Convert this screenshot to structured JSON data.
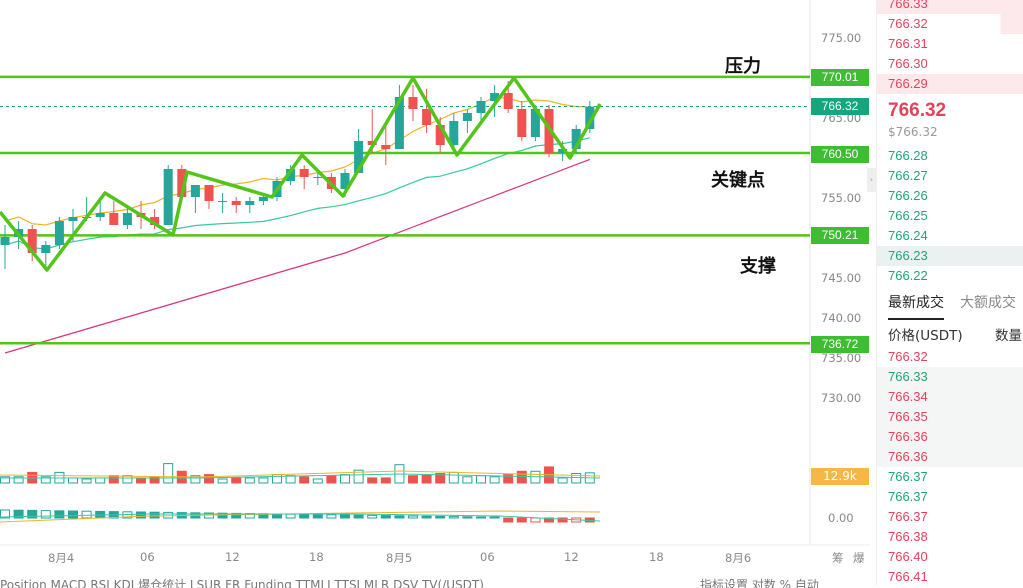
{
  "chart_data": {
    "type": "candlestick",
    "price_axis": [
      "775.00",
      "770.00",
      "765.00",
      "760.00",
      "755.00",
      "750.00",
      "745.00",
      "740.00",
      "735.00",
      "730.00"
    ],
    "volume_axis_zero": "0.00",
    "x_labels": [
      "8月4",
      "06",
      "12",
      "18",
      "8月5",
      "06",
      "12",
      "18",
      "8月6"
    ],
    "horizontal_levels": [
      {
        "value": "770.01",
        "annotation": "压力"
      },
      {
        "value": "760.50",
        "annotation": "关键点"
      },
      {
        "value": "750.21",
        "annotation": "支撑"
      },
      {
        "value": "736.72",
        "annotation": ""
      }
    ],
    "current_price_label": "766.32",
    "volume_label": "12.9k",
    "candles": [
      {
        "o": 749.0,
        "h": 751.5,
        "l": 746.0,
        "c": 750.0
      },
      {
        "o": 750.0,
        "h": 752.0,
        "l": 748.5,
        "c": 751.0
      },
      {
        "o": 751.0,
        "h": 751.5,
        "l": 747.0,
        "c": 748.0
      },
      {
        "o": 748.0,
        "h": 749.5,
        "l": 746.0,
        "c": 749.0
      },
      {
        "o": 749.0,
        "h": 752.5,
        "l": 748.5,
        "c": 752.0
      },
      {
        "o": 752.0,
        "h": 753.5,
        "l": 749.5,
        "c": 752.5
      },
      {
        "o": 752.5,
        "h": 755.0,
        "l": 752.0,
        "c": 752.5
      },
      {
        "o": 752.5,
        "h": 754.5,
        "l": 752.0,
        "c": 753.0
      },
      {
        "o": 753.0,
        "h": 754.5,
        "l": 751.5,
        "c": 751.5
      },
      {
        "o": 751.5,
        "h": 754.0,
        "l": 751.0,
        "c": 753.0
      },
      {
        "o": 753.0,
        "h": 754.5,
        "l": 751.0,
        "c": 752.5
      },
      {
        "o": 752.5,
        "h": 753.5,
        "l": 751.0,
        "c": 751.5
      },
      {
        "o": 751.5,
        "h": 759.0,
        "l": 751.5,
        "c": 758.5
      },
      {
        "o": 758.5,
        "h": 759.0,
        "l": 754.5,
        "c": 755.0
      },
      {
        "o": 755.0,
        "h": 756.5,
        "l": 753.0,
        "c": 756.5
      },
      {
        "o": 756.5,
        "h": 756.5,
        "l": 753.5,
        "c": 754.5
      },
      {
        "o": 754.5,
        "h": 755.5,
        "l": 753.0,
        "c": 754.5
      },
      {
        "o": 754.5,
        "h": 755.0,
        "l": 753.0,
        "c": 754.0
      },
      {
        "o": 754.0,
        "h": 755.0,
        "l": 753.0,
        "c": 754.5
      },
      {
        "o": 754.5,
        "h": 755.5,
        "l": 754.0,
        "c": 755.0
      },
      {
        "o": 755.0,
        "h": 757.5,
        "l": 754.5,
        "c": 757.0
      },
      {
        "o": 757.0,
        "h": 759.0,
        "l": 756.5,
        "c": 758.5
      },
      {
        "o": 758.5,
        "h": 759.0,
        "l": 756.0,
        "c": 757.5
      },
      {
        "o": 757.5,
        "h": 758.5,
        "l": 756.5,
        "c": 757.5
      },
      {
        "o": 757.5,
        "h": 758.0,
        "l": 755.5,
        "c": 756.0
      },
      {
        "o": 756.0,
        "h": 758.5,
        "l": 755.0,
        "c": 758.0
      },
      {
        "o": 758.0,
        "h": 763.5,
        "l": 758.0,
        "c": 762.0
      },
      {
        "o": 762.0,
        "h": 766.0,
        "l": 760.5,
        "c": 761.5
      },
      {
        "o": 761.5,
        "h": 764.0,
        "l": 759.0,
        "c": 761.0
      },
      {
        "o": 761.0,
        "h": 769.0,
        "l": 761.0,
        "c": 767.5
      },
      {
        "o": 767.5,
        "h": 769.0,
        "l": 764.5,
        "c": 766.0
      },
      {
        "o": 766.0,
        "h": 768.5,
        "l": 763.0,
        "c": 764.0
      },
      {
        "o": 764.0,
        "h": 765.0,
        "l": 760.5,
        "c": 761.5
      },
      {
        "o": 761.5,
        "h": 765.5,
        "l": 761.0,
        "c": 764.5
      },
      {
        "o": 764.5,
        "h": 766.0,
        "l": 763.0,
        "c": 765.5
      },
      {
        "o": 765.5,
        "h": 767.5,
        "l": 764.5,
        "c": 767.0
      },
      {
        "o": 767.0,
        "h": 769.0,
        "l": 765.0,
        "c": 768.0
      },
      {
        "o": 768.0,
        "h": 769.5,
        "l": 765.5,
        "c": 766.0
      },
      {
        "o": 766.0,
        "h": 767.0,
        "l": 762.0,
        "c": 762.5
      },
      {
        "o": 762.5,
        "h": 766.5,
        "l": 762.0,
        "c": 766.0
      },
      {
        "o": 766.0,
        "h": 766.5,
        "l": 760.0,
        "c": 760.5
      },
      {
        "o": 760.5,
        "h": 762.0,
        "l": 759.5,
        "c": 761.0
      },
      {
        "o": 761.0,
        "h": 764.0,
        "l": 760.5,
        "c": 763.5
      },
      {
        "o": 763.5,
        "h": 767.0,
        "l": 763.0,
        "c": 766.3
      }
    ]
  },
  "bottom_menu": "Position   MACD   RSI   KDJ   爆仓统计   LSUR   FR   Funding   TTMLI   TTSI   MLR   DSV   TV(/USDT)",
  "bottom_menu_right": "指标设置  对数  %  自动",
  "right_axis_extra": [
    "筹",
    "爆"
  ],
  "orderbook": {
    "asks": [
      "766.33",
      "766.32",
      "766.31",
      "766.30",
      "766.29"
    ],
    "mid_price": "766.32",
    "mid_usd": "$766.32",
    "bids": [
      "766.28",
      "766.27",
      "766.26",
      "766.25",
      "766.24",
      "766.23",
      "766.22"
    ],
    "tabs": [
      "最新成交",
      "大额成交"
    ],
    "col_price": "价格(USDT)",
    "col_qty": "数量",
    "trades": [
      {
        "p": "766.32",
        "side": "ask"
      },
      {
        "p": "766.33",
        "side": "bid"
      },
      {
        "p": "766.34",
        "side": "ask"
      },
      {
        "p": "766.35",
        "side": "ask"
      },
      {
        "p": "766.36",
        "side": "ask"
      },
      {
        "p": "766.36",
        "side": "ask"
      },
      {
        "p": "766.37",
        "side": "bid"
      },
      {
        "p": "766.37",
        "side": "bid"
      },
      {
        "p": "766.37",
        "side": "ask"
      },
      {
        "p": "766.38",
        "side": "ask"
      },
      {
        "p": "766.40",
        "side": "ask"
      },
      {
        "p": "766.41",
        "side": "ask"
      }
    ]
  },
  "colors": {
    "up": "#26a69a",
    "down": "#ef5350",
    "level_line": "#52c41a",
    "pattern": "#52c41a",
    "ma_yellow": "#f0b429",
    "ma_teal": "#35c9a8",
    "ma_pink": "#d63384"
  }
}
